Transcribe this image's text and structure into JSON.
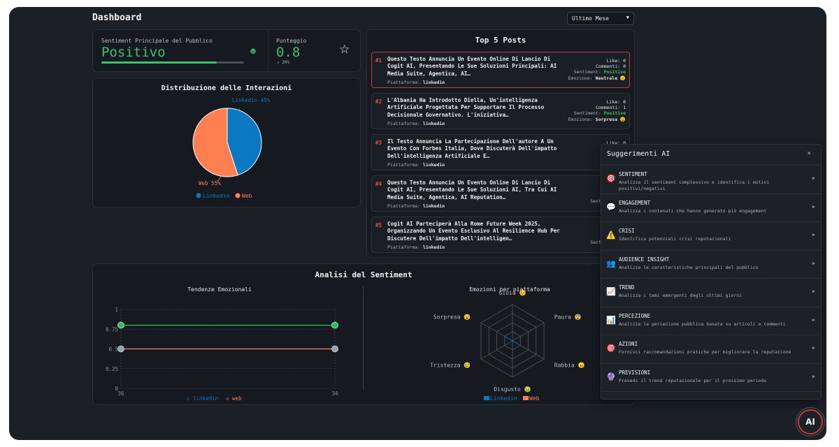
{
  "header": {
    "title": "Dashboard",
    "range_selected": "Ultimo Mese"
  },
  "sentiment": {
    "label": "Sentiment Principale del Pubblico",
    "value": "Positivo",
    "bar_fraction": 0.81
  },
  "score": {
    "label": "Punteggio",
    "value": "0.8",
    "delta": "↗ 20%"
  },
  "pie": {
    "title": "Distribuzione delle Interazioni",
    "slice_labels": [
      "Linkedin 45%",
      "Web 55%"
    ],
    "legend": [
      "Linkedin",
      "Web"
    ],
    "colors": [
      "#0a78c2",
      "#ff7f50"
    ]
  },
  "posts": {
    "title": "Top 5 Posts",
    "platform_label": "Piattaforma:",
    "items": [
      {
        "rank": "#1",
        "title": "Questo Testo Annuncia Un Evento Online Di Lancio Di Cogit AI, Presentando Le Sue Soluzioni Principali: AI Media Suite, Agentica, AI…",
        "platform": "linkedin",
        "likes": "Like: 0",
        "comments": "Commenti: 0",
        "sentiment": "Positive",
        "emotion": "Neutrale 😐"
      },
      {
        "rank": "#2",
        "title": "L'Albania Ha Introdotto Diella, Un'intelligenza Artificiale Progettata Per Supportare Il Processo Decisionale Governativo. L'iniziativa…",
        "platform": "linkedin",
        "likes": "Like: 0",
        "comments": "Commenti: 1",
        "sentiment": "Positive",
        "emotion": "Sorpresa 😮"
      },
      {
        "rank": "#3",
        "title": "Il Testo Annuncia La Partecipazione Dell'autore A Un Evento Con Forbes Italia, Dove Discuterà Dell'impatto Dell'intelligenza Artificiale E…",
        "platform": "linkedin",
        "likes": "Like: 0",
        "comments": "Comm",
        "sentiment": "",
        "emotion": ""
      },
      {
        "rank": "#4",
        "title": "Questo Testo Annuncia Un Evento Online Di Lancio Di Cogit AI, Presentando Le Sue Soluzioni AI, Tra Cui AI Media Suite, Agentica, AI Reputation…",
        "platform": "linkedin",
        "likes": "",
        "comments": "Co",
        "sentiment": "",
        "emotion": "Se"
      },
      {
        "rank": "#5",
        "title": "Cogit AI Parteciperà Alla Rome Future Week 2025, Organizzando Un Evento Esclusivo Al Resilience Hub Per Discutere Dell'impatto Dell'intelligen…",
        "platform": "linkedin",
        "likes": "",
        "comments": "Co",
        "sentiment": "",
        "emotion": "Re"
      }
    ],
    "sentiment_label": "Sentiment:",
    "emotion_label": "Emozione:"
  },
  "analysis": {
    "title": "Analisi del Sentiment",
    "line_title": "Tendenze Emozionali",
    "radar_title": "Emozioni per piattaforma",
    "line_legend": [
      "linkedin",
      "web"
    ],
    "radar_legend": [
      "Linkedin",
      "Web"
    ],
    "radar_axes": [
      "Gioia 😊",
      "Paura 😨",
      "Rabbia 😠",
      "Disgusto 🤢",
      "Tristezza 😢",
      "Sorpresa 😮"
    ]
  },
  "chart_data": [
    {
      "type": "pie",
      "title": "Distribuzione delle Interazioni",
      "labels": [
        "Linkedin",
        "Web"
      ],
      "values": [
        45,
        55
      ]
    },
    {
      "type": "line",
      "title": "Tendenze Emozionali",
      "x": [
        "36",
        "34"
      ],
      "ylim": [
        0,
        1
      ],
      "yticks": [
        "1",
        "0.75",
        "0.5",
        "0.25",
        "0"
      ],
      "series": [
        {
          "name": "linkedin",
          "values": [
            0.8,
            0.8
          ],
          "color": "#22c55e"
        },
        {
          "name": "web",
          "values": [
            0.5,
            0.5
          ],
          "color": "#ff7f50"
        }
      ]
    },
    {
      "type": "radar",
      "title": "Emozioni per piattaforma",
      "axes": [
        "Gioia",
        "Paura",
        "Rabbia",
        "Disgusto",
        "Tristezza",
        "Sorpresa"
      ],
      "series": [
        {
          "name": "Linkedin",
          "values": [
            0,
            0,
            0.2,
            0,
            0,
            0.3
          ]
        },
        {
          "name": "Web",
          "values": [
            0,
            0,
            0,
            0,
            0,
            0
          ]
        }
      ]
    }
  ],
  "suggestions": {
    "title": "Suggerimenti AI",
    "close": "×",
    "items": [
      {
        "icon": "🎯",
        "name": "SENTIMENT",
        "desc": "Analizza il sentiment complessivo e identifica i motivi positivi/negativi"
      },
      {
        "icon": "💬",
        "name": "ENGAGEMENT",
        "desc": "Analizza i contenuti che hanno generato più engagement"
      },
      {
        "icon": "⚠️",
        "name": "CRISI",
        "desc": "Identifica potenziali crisi reputazionali"
      },
      {
        "icon": "👥",
        "name": "AUDIENCE INSIGHT",
        "desc": "Analizza le caratteristiche principali del pubblico"
      },
      {
        "icon": "📈",
        "name": "TREND",
        "desc": "Analizza i temi emergenti degli ultimi giorni"
      },
      {
        "icon": "📊",
        "name": "PERCEZIONE",
        "desc": "Analizza la percezione pubblica basata su articoli e commenti"
      },
      {
        "icon": "🎯",
        "name": "AZIONI",
        "desc": "Fornisci raccomandazioni pratiche per migliorare la reputazione"
      },
      {
        "icon": "🔮",
        "name": "PREVISIONI",
        "desc": "Prevedi il trend reputazionale per il prossimo periodo"
      }
    ]
  },
  "ai_button": {
    "label": "AI"
  }
}
